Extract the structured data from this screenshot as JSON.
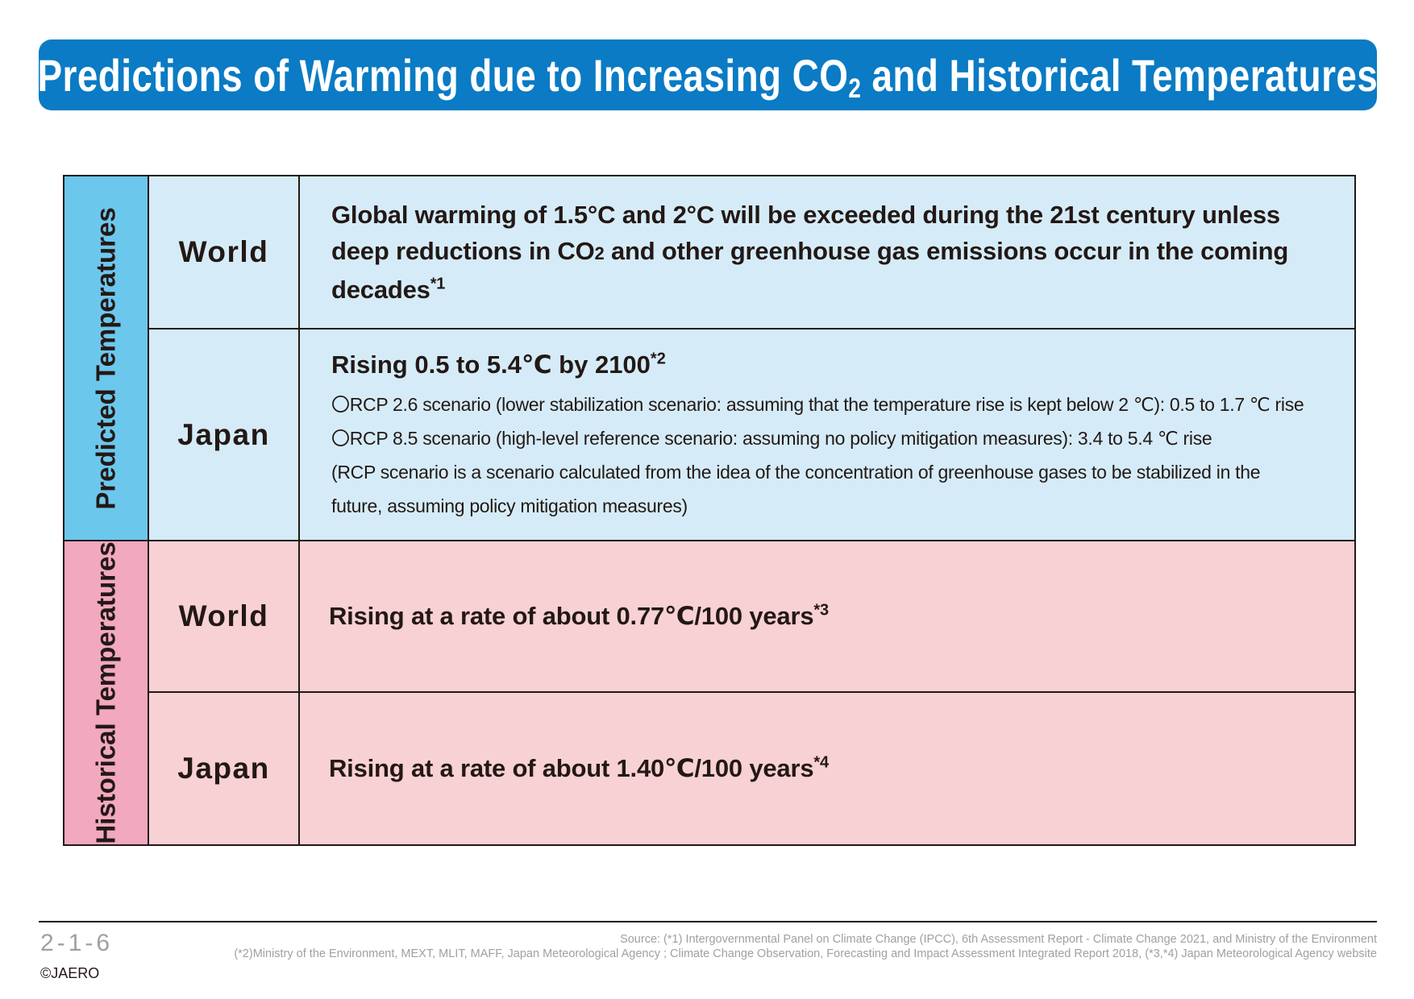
{
  "title": {
    "main": "Predictions of Warming due to Increasing CO",
    "subscript": "2",
    "rest": " and Historical Temperatures"
  },
  "categories": {
    "predicted": "Predicted Temperatures",
    "historical": "Historical Temperatures"
  },
  "rows": {
    "predicted_world": {
      "region": "World",
      "text_before": "Global warming of 1.5°C and 2°C will be exceeded during the 21st century unless deep reductions in CO",
      "subscript": "2",
      "text_after": " and other greenhouse gas emissions occur in the coming decades",
      "note": "*1"
    },
    "predicted_japan": {
      "region": "Japan",
      "headline": "Rising 0.5 to 5.4℃ by 2100",
      "note": "*2",
      "details": [
        "〇RCP 2.6 scenario (lower stabilization scenario: assuming that the temperature rise is kept below 2 ℃): 0.5 to 1.7 ℃ rise",
        "〇RCP 8.5 scenario (high-level reference scenario: assuming no policy mitigation measures): 3.4 to 5.4 ℃ rise",
        "(RCP scenario is a scenario calculated from the idea of the concentration of greenhouse gases to be stabilized in the",
        "future, assuming policy mitigation measures)"
      ]
    },
    "historical_world": {
      "region": "World",
      "text": "Rising at a rate of about 0.77℃/100 years",
      "note": "*3"
    },
    "historical_japan": {
      "region": "Japan",
      "text": "Rising at a rate of about 1.40℃/100 years",
      "note": "*4"
    }
  },
  "footer": {
    "page_number": "2-1-6",
    "copyright": "©JAERO",
    "source_line1": "Source:  (*1) Intergovernmental Panel on Climate Change (IPCC), 6th Assessment Report - Climate Change 2021, and Ministry of the Environment",
    "source_line2": "(*2)Ministry of the Environment, MEXT, MLIT, MAFF, Japan Meteorological Agency ; Climate Change Observation, Forecasting and Impact Assessment Integrated Report 2018, (*3,*4) Japan Meteorological Agency website"
  },
  "colors": {
    "title_bar": "#0a7bc4",
    "predicted_category": "#6cc7ec",
    "predicted_cell": "#d5ecf8",
    "historical_category": "#f2a8bf",
    "historical_cell": "#f8d1d5"
  }
}
